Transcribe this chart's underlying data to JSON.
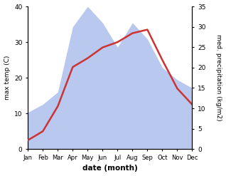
{
  "months": [
    "Jan",
    "Feb",
    "Mar",
    "Apr",
    "May",
    "Jun",
    "Jul",
    "Aug",
    "Sep",
    "Oct",
    "Nov",
    "Dec"
  ],
  "temperature": [
    2.5,
    5.0,
    12.0,
    23.0,
    25.5,
    28.5,
    30.0,
    32.5,
    33.5,
    25.0,
    17.0,
    12.5
  ],
  "precipitation": [
    9,
    11,
    14,
    30,
    35,
    31,
    25,
    31,
    27,
    20,
    17,
    15
  ],
  "temp_ylim": [
    0,
    40
  ],
  "precip_ylim": [
    0,
    35
  ],
  "temp_yticks": [
    0,
    10,
    20,
    30,
    40
  ],
  "precip_yticks": [
    0,
    5,
    10,
    15,
    20,
    25,
    30,
    35
  ],
  "xlabel": "date (month)",
  "ylabel_left": "max temp (C)",
  "ylabel_right": "med. precipitation (kg/m2)",
  "temp_color": "#cc3333",
  "precip_fill_color": "#b8c8ee",
  "background_color": "#ffffff",
  "line_width": 1.8
}
